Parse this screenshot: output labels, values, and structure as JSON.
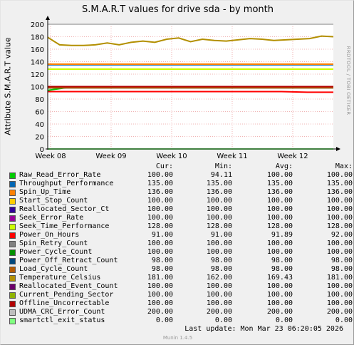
{
  "title": "S.M.A.R.T values for drive sda - by month",
  "side_label": "RRDTOOL / TOBI OETIKER",
  "chart_data": {
    "type": "line",
    "title": "S.M.A.R.T values for drive sda - by month",
    "ylabel": "Attribute S.M.A.R.T value",
    "xlabel": "",
    "ylim": [
      0,
      200
    ],
    "y_ticks": [
      0,
      20,
      40,
      60,
      80,
      100,
      120,
      140,
      160,
      180,
      200
    ],
    "x_ticks": [
      "Week 08",
      "Week 09",
      "Week 10",
      "Week 11",
      "Week 12"
    ],
    "grid": true,
    "series": [
      {
        "name": "Raw_Read_Error_Rate",
        "color": "#00cc00",
        "values": [
          94.11,
          100,
          100,
          100,
          100,
          100,
          100,
          100,
          100,
          100,
          100,
          100
        ]
      },
      {
        "name": "Throughput_Performance",
        "color": "#0066b3",
        "values": [
          135,
          135,
          135,
          135,
          135,
          135,
          135,
          135,
          135,
          135,
          135,
          135
        ]
      },
      {
        "name": "Spin_Up_Time",
        "color": "#ff8000",
        "values": [
          136,
          136,
          136,
          136,
          136,
          136,
          136,
          136,
          136,
          136,
          136,
          136
        ]
      },
      {
        "name": "Start_Stop_Count",
        "color": "#ffcc00",
        "values": [
          100,
          100,
          100,
          100,
          100,
          100,
          100,
          100,
          100,
          100,
          100,
          100
        ]
      },
      {
        "name": "Reallocated_Sector_Ct",
        "color": "#330099",
        "values": [
          100,
          100,
          100,
          100,
          100,
          100,
          100,
          100,
          100,
          100,
          100,
          100
        ]
      },
      {
        "name": "Seek_Error_Rate",
        "color": "#990099",
        "values": [
          100,
          100,
          100,
          100,
          100,
          100,
          100,
          100,
          100,
          100,
          100,
          100
        ]
      },
      {
        "name": "Seek_Time_Performance",
        "color": "#ccff00",
        "values": [
          128,
          128,
          128,
          128,
          128,
          128,
          128,
          128,
          128,
          128,
          128,
          128
        ]
      },
      {
        "name": "Power_On_Hours",
        "color": "#ff0000",
        "values": [
          92,
          92,
          92,
          92,
          92,
          92,
          92,
          92,
          92,
          92,
          91,
          91
        ]
      },
      {
        "name": "Spin_Retry_Count",
        "color": "#808080",
        "values": [
          100,
          100,
          100,
          100,
          100,
          100,
          100,
          100,
          100,
          100,
          100,
          100
        ]
      },
      {
        "name": "Power_Cycle_Count",
        "color": "#008f00",
        "values": [
          100,
          100,
          100,
          100,
          100,
          100,
          100,
          100,
          100,
          100,
          100,
          100
        ]
      },
      {
        "name": "Power_Off_Retract_Count",
        "color": "#00487d",
        "values": [
          98,
          98,
          98,
          98,
          98,
          98,
          98,
          98,
          98,
          98,
          98,
          98
        ]
      },
      {
        "name": "Load_Cycle_Count",
        "color": "#b35a00",
        "values": [
          98,
          98,
          98,
          98,
          98,
          98,
          98,
          98,
          98,
          98,
          98,
          98
        ]
      },
      {
        "name": "Temperature_Celsius",
        "color": "#b38f00",
        "values": [
          179,
          167,
          166,
          166,
          167,
          170,
          167,
          171,
          173,
          171,
          176,
          178,
          172,
          176,
          174,
          173,
          175,
          177,
          176,
          174,
          175,
          176,
          177,
          181,
          180
        ]
      },
      {
        "name": "Reallocated_Event_Count",
        "color": "#6b006b",
        "values": [
          100,
          100,
          100,
          100,
          100,
          100,
          100,
          100,
          100,
          100,
          100,
          100
        ]
      },
      {
        "name": "Current_Pending_Sector",
        "color": "#8fb300",
        "values": [
          100,
          100,
          100,
          100,
          100,
          100,
          100,
          100,
          100,
          100,
          100,
          100
        ]
      },
      {
        "name": "Offline_Uncorrectable",
        "color": "#b30000",
        "values": [
          100,
          100,
          100,
          100,
          100,
          100,
          100,
          100,
          100,
          100,
          100,
          100
        ]
      },
      {
        "name": "UDMA_CRC_Error_Count",
        "color": "#bebebe",
        "values": [
          200,
          200,
          200,
          200,
          200,
          200,
          200,
          200,
          200,
          200,
          200,
          200
        ]
      },
      {
        "name": "smartctl_exit_status",
        "color": "#80ff80",
        "values": [
          0,
          0,
          0,
          0,
          0,
          0,
          0,
          0,
          0,
          0,
          0,
          0
        ]
      }
    ]
  },
  "legend": {
    "headers": {
      "cur": "Cur:",
      "min": "Min:",
      "avg": "Avg:",
      "max": "Max:"
    },
    "rows": [
      {
        "name": "Raw_Read_Error_Rate",
        "color": "#00cc00",
        "cur": "100.00",
        "min": "94.11",
        "avg": "100.00",
        "max": "100.00"
      },
      {
        "name": "Throughput_Performance",
        "color": "#0066b3",
        "cur": "135.00",
        "min": "135.00",
        "avg": "135.00",
        "max": "135.00"
      },
      {
        "name": "Spin_Up_Time",
        "color": "#ff8000",
        "cur": "136.00",
        "min": "136.00",
        "avg": "136.00",
        "max": "136.00"
      },
      {
        "name": "Start_Stop_Count",
        "color": "#ffcc00",
        "cur": "100.00",
        "min": "100.00",
        "avg": "100.00",
        "max": "100.00"
      },
      {
        "name": "Reallocated_Sector_Ct",
        "color": "#330099",
        "cur": "100.00",
        "min": "100.00",
        "avg": "100.00",
        "max": "100.00"
      },
      {
        "name": "Seek_Error_Rate",
        "color": "#990099",
        "cur": "100.00",
        "min": "100.00",
        "avg": "100.00",
        "max": "100.00"
      },
      {
        "name": "Seek_Time_Performance",
        "color": "#ccff00",
        "cur": "128.00",
        "min": "128.00",
        "avg": "128.00",
        "max": "128.00"
      },
      {
        "name": "Power_On_Hours",
        "color": "#ff0000",
        "cur": "91.00",
        "min": "91.00",
        "avg": "91.89",
        "max": "92.00"
      },
      {
        "name": "Spin_Retry_Count",
        "color": "#808080",
        "cur": "100.00",
        "min": "100.00",
        "avg": "100.00",
        "max": "100.00"
      },
      {
        "name": "Power_Cycle_Count",
        "color": "#008f00",
        "cur": "100.00",
        "min": "100.00",
        "avg": "100.00",
        "max": "100.00"
      },
      {
        "name": "Power_Off_Retract_Count",
        "color": "#00487d",
        "cur": "98.00",
        "min": "98.00",
        "avg": "98.00",
        "max": "98.00"
      },
      {
        "name": "Load_Cycle_Count",
        "color": "#b35a00",
        "cur": "98.00",
        "min": "98.00",
        "avg": "98.00",
        "max": "98.00"
      },
      {
        "name": "Temperature_Celsius",
        "color": "#b38f00",
        "cur": "181.00",
        "min": "162.00",
        "avg": "169.43",
        "max": "181.00"
      },
      {
        "name": "Reallocated_Event_Count",
        "color": "#6b006b",
        "cur": "100.00",
        "min": "100.00",
        "avg": "100.00",
        "max": "100.00"
      },
      {
        "name": "Current_Pending_Sector",
        "color": "#8fb300",
        "cur": "100.00",
        "min": "100.00",
        "avg": "100.00",
        "max": "100.00"
      },
      {
        "name": "Offline_Uncorrectable",
        "color": "#b30000",
        "cur": "100.00",
        "min": "100.00",
        "avg": "100.00",
        "max": "100.00"
      },
      {
        "name": "UDMA_CRC_Error_Count",
        "color": "#bebebe",
        "cur": "200.00",
        "min": "200.00",
        "avg": "200.00",
        "max": "200.00"
      },
      {
        "name": "smartctl_exit_status",
        "color": "#80ff80",
        "cur": "0.00",
        "min": "0.00",
        "avg": "0.00",
        "max": "0.00"
      }
    ]
  },
  "last_update_text": "Last update:  Mon Mar 23 06:20:05 2026",
  "munin_version": "Munin 1.4.5"
}
